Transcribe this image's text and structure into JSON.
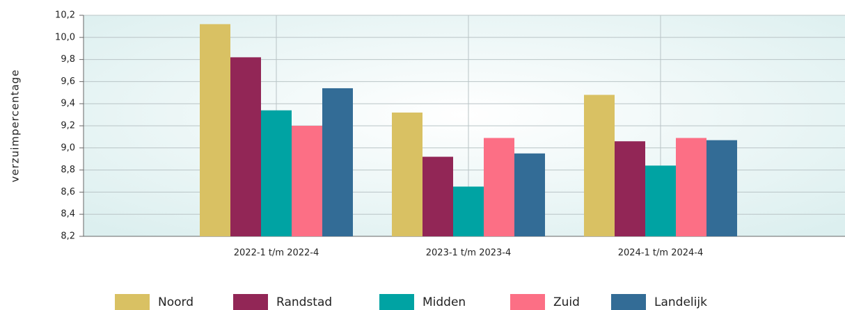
{
  "chart_data": {
    "type": "bar",
    "y_label": "verzuimpercentage",
    "categories": [
      "2022-1 t/m 2022-4",
      "2023-1 t/m 2023-4",
      "2024-1 t/m 2024-4"
    ],
    "series": [
      {
        "name": "Noord",
        "color": "#d9c163",
        "values": [
          10.12,
          9.32,
          9.48
        ]
      },
      {
        "name": "Randstad",
        "color": "#922656",
        "values": [
          9.82,
          8.92,
          9.06
        ]
      },
      {
        "name": "Midden",
        "color": "#00a3a3",
        "values": [
          9.34,
          8.65,
          8.84
        ]
      },
      {
        "name": "Zuid",
        "color": "#fc6f85",
        "values": [
          9.2,
          9.09,
          9.09
        ]
      },
      {
        "name": "Landelijk",
        "color": "#336c96",
        "values": [
          9.54,
          8.95,
          9.07
        ]
      }
    ],
    "ylim": [
      8.2,
      10.2
    ],
    "yticks": [
      {
        "value": 8.2,
        "label": "8,2"
      },
      {
        "value": 8.4,
        "label": "8,4"
      },
      {
        "value": 8.6,
        "label": "8,6"
      },
      {
        "value": 8.8,
        "label": "8,8"
      },
      {
        "value": 9.0,
        "label": "9,0"
      },
      {
        "value": 9.2,
        "label": "9,2"
      },
      {
        "value": 9.4,
        "label": "9,4"
      },
      {
        "value": 9.6,
        "label": "9,6"
      },
      {
        "value": 9.8,
        "label": "9,8"
      },
      {
        "value": 10.0,
        "label": "10,0"
      },
      {
        "value": 10.2,
        "label": "10,2"
      }
    ],
    "grid": true,
    "legend": "bottom"
  }
}
